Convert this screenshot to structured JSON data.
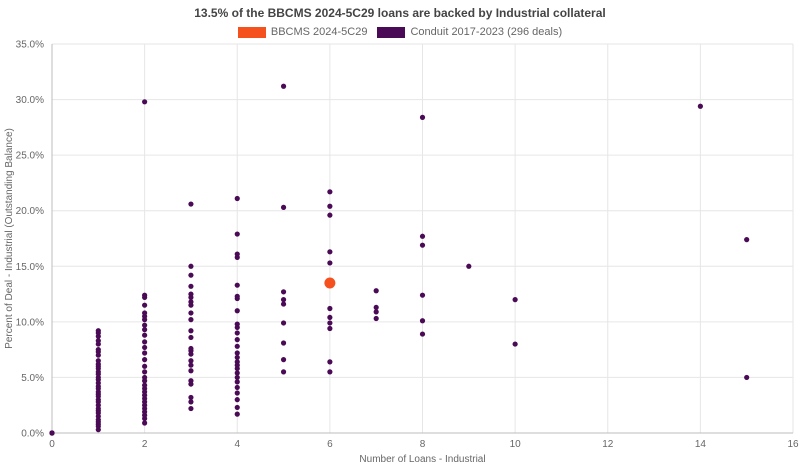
{
  "chart_data": {
    "type": "scatter",
    "title": "13.5% of the BBCMS 2024-5C29 loans are backed by Industrial collateral",
    "xlabel": "Number of Loans - Industrial",
    "ylabel": "Percent of Deal - Industrial (Outstanding Balance)",
    "xlim": [
      0,
      16
    ],
    "ylim": [
      0,
      35
    ],
    "x_ticks": [
      0,
      2,
      4,
      6,
      8,
      10,
      12,
      14,
      16
    ],
    "y_ticks": [
      "0.0%",
      "5.0%",
      "10.0%",
      "15.0%",
      "20.0%",
      "25.0%",
      "30.0%",
      "35.0%"
    ],
    "grid": true,
    "legend_position": "top-center",
    "series": [
      {
        "name": "BBCMS 2024-5C29",
        "color": "#f4511e",
        "points": [
          [
            6,
            13.5
          ]
        ]
      },
      {
        "name": "Conduit 2017-2023 (296 deals)",
        "color": "#4a0a55",
        "points": [
          [
            0,
            0.0
          ],
          [
            0,
            0.0
          ],
          [
            0,
            0.0
          ],
          [
            1,
            0.3
          ],
          [
            1,
            0.6
          ],
          [
            1,
            0.8
          ],
          [
            1,
            1.0
          ],
          [
            1,
            1.2
          ],
          [
            1,
            1.5
          ],
          [
            1,
            1.8
          ],
          [
            1,
            2.0
          ],
          [
            1,
            2.2
          ],
          [
            1,
            2.5
          ],
          [
            1,
            2.8
          ],
          [
            1,
            3.0
          ],
          [
            1,
            3.3
          ],
          [
            1,
            3.5
          ],
          [
            1,
            3.7
          ],
          [
            1,
            4.0
          ],
          [
            1,
            4.2
          ],
          [
            1,
            4.5
          ],
          [
            1,
            4.8
          ],
          [
            1,
            5.0
          ],
          [
            1,
            5.3
          ],
          [
            1,
            5.5
          ],
          [
            1,
            5.8
          ],
          [
            1,
            6.0
          ],
          [
            1,
            6.2
          ],
          [
            1,
            6.5
          ],
          [
            1,
            7.0
          ],
          [
            1,
            7.3
          ],
          [
            1,
            7.5
          ],
          [
            1,
            8.0
          ],
          [
            1,
            8.3
          ],
          [
            1,
            8.7
          ],
          [
            1,
            9.0
          ],
          [
            1,
            9.2
          ],
          [
            2,
            0.9
          ],
          [
            2,
            1.3
          ],
          [
            2,
            1.6
          ],
          [
            2,
            1.9
          ],
          [
            2,
            2.2
          ],
          [
            2,
            2.5
          ],
          [
            2,
            2.8
          ],
          [
            2,
            3.1
          ],
          [
            2,
            3.4
          ],
          [
            2,
            3.7
          ],
          [
            2,
            4.0
          ],
          [
            2,
            4.3
          ],
          [
            2,
            4.7
          ],
          [
            2,
            5.0
          ],
          [
            2,
            5.5
          ],
          [
            2,
            6.0
          ],
          [
            2,
            6.6
          ],
          [
            2,
            7.2
          ],
          [
            2,
            7.7
          ],
          [
            2,
            8.2
          ],
          [
            2,
            8.8
          ],
          [
            2,
            9.3
          ],
          [
            2,
            9.7
          ],
          [
            2,
            10.2
          ],
          [
            2,
            10.5
          ],
          [
            2,
            10.8
          ],
          [
            2,
            11.5
          ],
          [
            2,
            12.2
          ],
          [
            2,
            12.4
          ],
          [
            2,
            29.8
          ],
          [
            3,
            2.2
          ],
          [
            3,
            2.8
          ],
          [
            3,
            3.2
          ],
          [
            3,
            4.4
          ],
          [
            3,
            4.7
          ],
          [
            3,
            5.6
          ],
          [
            3,
            6.1
          ],
          [
            3,
            6.5
          ],
          [
            3,
            7.1
          ],
          [
            3,
            7.4
          ],
          [
            3,
            7.6
          ],
          [
            3,
            8.6
          ],
          [
            3,
            9.2
          ],
          [
            3,
            10.2
          ],
          [
            3,
            10.8
          ],
          [
            3,
            11.5
          ],
          [
            3,
            11.8
          ],
          [
            3,
            12.2
          ],
          [
            3,
            12.5
          ],
          [
            3,
            13.2
          ],
          [
            3,
            14.2
          ],
          [
            3,
            15.0
          ],
          [
            3,
            20.6
          ],
          [
            4,
            1.7
          ],
          [
            4,
            2.3
          ],
          [
            4,
            3.0
          ],
          [
            4,
            3.6
          ],
          [
            4,
            4.1
          ],
          [
            4,
            4.6
          ],
          [
            4,
            5.0
          ],
          [
            4,
            5.4
          ],
          [
            4,
            5.8
          ],
          [
            4,
            6.1
          ],
          [
            4,
            6.4
          ],
          [
            4,
            6.8
          ],
          [
            4,
            7.2
          ],
          [
            4,
            7.8
          ],
          [
            4,
            8.4
          ],
          [
            4,
            9.0
          ],
          [
            4,
            9.5
          ],
          [
            4,
            9.8
          ],
          [
            4,
            11.0
          ],
          [
            4,
            12.1
          ],
          [
            4,
            12.3
          ],
          [
            4,
            13.3
          ],
          [
            4,
            15.8
          ],
          [
            4,
            16.1
          ],
          [
            4,
            17.9
          ],
          [
            4,
            21.1
          ],
          [
            5,
            5.5
          ],
          [
            5,
            6.6
          ],
          [
            5,
            8.1
          ],
          [
            5,
            9.9
          ],
          [
            5,
            11.6
          ],
          [
            5,
            12.0
          ],
          [
            5,
            12.7
          ],
          [
            5,
            20.3
          ],
          [
            5,
            31.2
          ],
          [
            6,
            5.5
          ],
          [
            6,
            6.4
          ],
          [
            6,
            9.4
          ],
          [
            6,
            9.9
          ],
          [
            6,
            10.4
          ],
          [
            6,
            11.2
          ],
          [
            6,
            15.3
          ],
          [
            6,
            16.3
          ],
          [
            6,
            19.6
          ],
          [
            6,
            20.4
          ],
          [
            6,
            21.7
          ],
          [
            7,
            10.3
          ],
          [
            7,
            10.9
          ],
          [
            7,
            11.3
          ],
          [
            7,
            12.8
          ],
          [
            8,
            8.9
          ],
          [
            8,
            10.1
          ],
          [
            8,
            12.4
          ],
          [
            8,
            16.9
          ],
          [
            8,
            17.7
          ],
          [
            8,
            28.4
          ],
          [
            9,
            15.0
          ],
          [
            10,
            8.0
          ],
          [
            10,
            12.0
          ],
          [
            14,
            29.4
          ],
          [
            15,
            5.0
          ],
          [
            15,
            17.4
          ]
        ]
      }
    ]
  }
}
